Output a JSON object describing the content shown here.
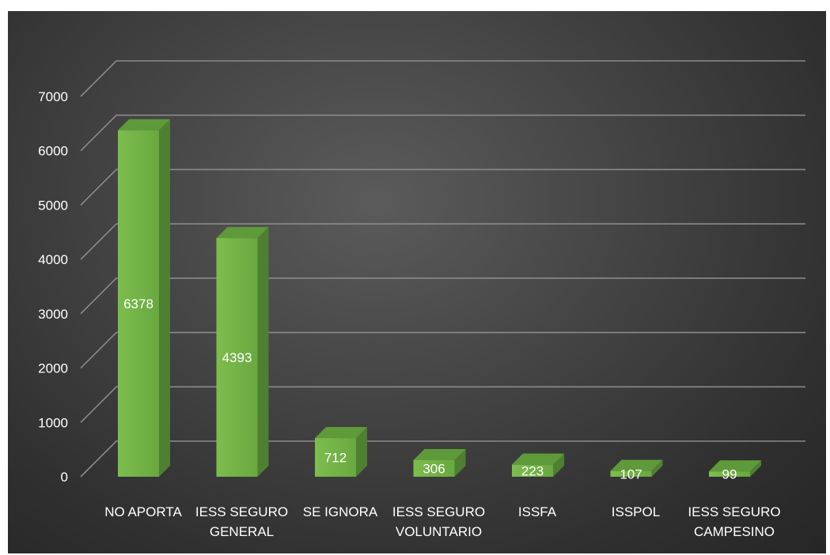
{
  "chart_data": {
    "type": "bar",
    "categories": [
      [
        "NO APORTA"
      ],
      [
        "IESS SEGURO",
        "GENERAL"
      ],
      [
        "SE IGNORA"
      ],
      [
        "IESS SEGURO",
        "VOLUNTARIO"
      ],
      [
        "ISSFA"
      ],
      [
        "ISSPOL"
      ],
      [
        "IESS SEGURO",
        "CAMPESINO"
      ]
    ],
    "values": [
      6378,
      4393,
      712,
      306,
      223,
      107,
      99
    ],
    "data_labels": [
      "6378",
      "4393",
      "712",
      "306",
      "223",
      "107",
      "99"
    ],
    "yticks": [
      "0",
      "1000",
      "2000",
      "3000",
      "4000",
      "5000",
      "6000",
      "7000"
    ],
    "ylim": [
      0,
      7000
    ],
    "grid": true,
    "legend": "none",
    "colors": {
      "bar_front": "#70ad47",
      "bar_front_light": "#86c25a",
      "bar_side": "#4f7f30",
      "bar_top": "#5e9a3a",
      "grid": "#8a8a8a",
      "text": "#ffffff",
      "background": "#3a3a3a"
    }
  }
}
